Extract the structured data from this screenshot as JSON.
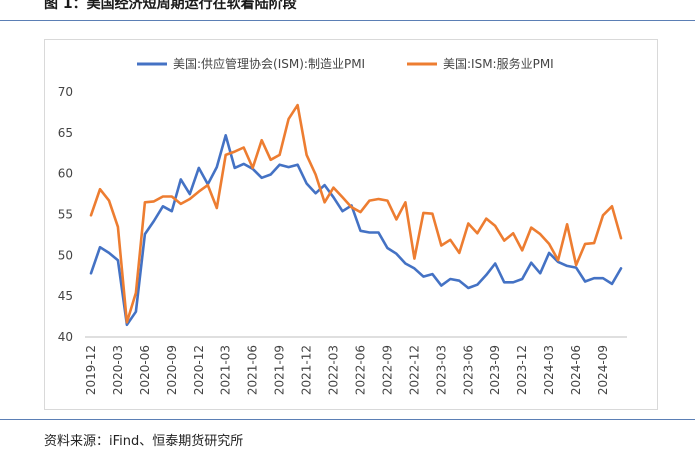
{
  "figure": {
    "title": "图 1：美国经济短周期运行在软着陆阶段",
    "source": "资料来源：iFind、恒泰期货研究所"
  },
  "chart_data": {
    "type": "line",
    "title": "",
    "xlabel": "",
    "ylabel": "",
    "ylim": [
      40,
      70
    ],
    "yticks": [
      40,
      45,
      50,
      55,
      60,
      65,
      70
    ],
    "grid": false,
    "legend_position": "top",
    "xtick_labels": [
      "2019-12",
      "2020-03",
      "2020-06",
      "2020-09",
      "2020-12",
      "2021-03",
      "2021-06",
      "2021-09",
      "2021-12",
      "2022-03",
      "2022-06",
      "2022-09",
      "2022-12",
      "2023-03",
      "2023-06",
      "2023-09",
      "2023-12",
      "2024-03",
      "2024-06",
      "2024-09"
    ],
    "x": [
      "2019-12",
      "2020-01",
      "2020-02",
      "2020-03",
      "2020-04",
      "2020-05",
      "2020-06",
      "2020-07",
      "2020-08",
      "2020-09",
      "2020-10",
      "2020-11",
      "2020-12",
      "2021-01",
      "2021-02",
      "2021-03",
      "2021-04",
      "2021-05",
      "2021-06",
      "2021-07",
      "2021-08",
      "2021-09",
      "2021-10",
      "2021-11",
      "2021-12",
      "2022-01",
      "2022-02",
      "2022-03",
      "2022-04",
      "2022-05",
      "2022-06",
      "2022-07",
      "2022-08",
      "2022-09",
      "2022-10",
      "2022-11",
      "2022-12",
      "2023-01",
      "2023-02",
      "2023-03",
      "2023-04",
      "2023-05",
      "2023-06",
      "2023-07",
      "2023-08",
      "2023-09",
      "2023-10",
      "2023-11",
      "2023-12",
      "2024-01",
      "2024-02",
      "2024-03",
      "2024-04",
      "2024-05",
      "2024-06",
      "2024-07",
      "2024-08",
      "2024-09",
      "2024-10",
      "2024-11"
    ],
    "series": [
      {
        "name": "美国:供应管理协会(ISM):制造业PMI",
        "color": "#4472c4",
        "values": [
          47.8,
          51.0,
          50.3,
          49.4,
          41.5,
          43.1,
          52.6,
          54.2,
          56.0,
          55.4,
          59.3,
          57.5,
          60.7,
          58.7,
          60.8,
          64.7,
          60.7,
          61.2,
          60.6,
          59.5,
          59.9,
          61.1,
          60.8,
          61.1,
          58.8,
          57.6,
          58.6,
          57.1,
          55.4,
          56.1,
          53.0,
          52.8,
          52.8,
          50.9,
          50.2,
          49.0,
          48.4,
          47.4,
          47.7,
          46.3,
          47.1,
          46.9,
          46.0,
          46.4,
          47.6,
          49.0,
          46.7,
          46.7,
          47.1,
          49.1,
          47.8,
          50.3,
          49.2,
          48.7,
          48.5,
          46.8,
          47.2,
          47.2,
          46.5,
          48.4
        ]
      },
      {
        "name": "美国:ISM:服务业PMI",
        "color": "#ed7d31",
        "values": [
          54.9,
          58.1,
          56.7,
          53.5,
          41.8,
          45.4,
          56.5,
          56.6,
          57.2,
          57.2,
          56.3,
          56.9,
          57.8,
          58.6,
          55.8,
          62.3,
          62.7,
          63.2,
          60.7,
          64.1,
          61.7,
          62.3,
          66.7,
          68.4,
          62.3,
          59.9,
          56.5,
          58.3,
          57.1,
          55.9,
          55.3,
          56.7,
          56.9,
          56.7,
          54.4,
          56.5,
          49.6,
          55.2,
          55.1,
          51.2,
          51.9,
          50.3,
          53.9,
          52.7,
          54.5,
          53.6,
          51.8,
          52.7,
          50.6,
          53.4,
          52.6,
          51.4,
          49.4,
          53.8,
          48.8,
          51.4,
          51.5,
          54.9,
          56.0,
          52.1
        ]
      }
    ]
  }
}
